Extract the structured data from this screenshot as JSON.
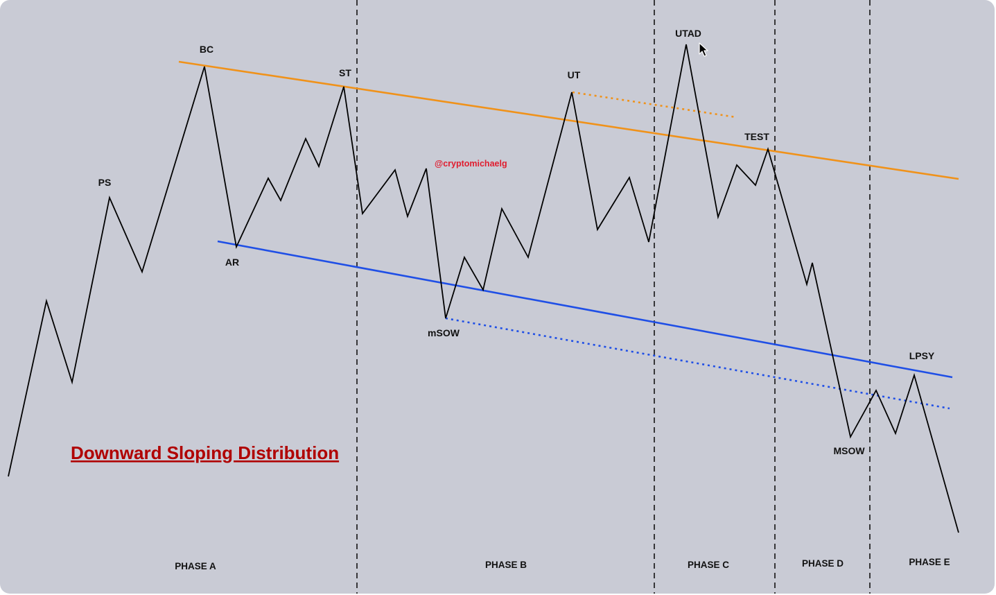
{
  "diagram": {
    "title": "Downward Sloping Distribution",
    "watermark": "@cryptomichaelg",
    "event_labels": {
      "ps": "PS",
      "bc": "BC",
      "ar": "AR",
      "st": "ST",
      "msow_minor": "mSOW",
      "ut": "UT",
      "utad": "UTAD",
      "test": "TEST",
      "msow": "MSOW",
      "lpsy": "LPSY"
    },
    "phases": {
      "a": "PHASE A",
      "b": "PHASE B",
      "c": "PHASE C",
      "d": "PHASE D",
      "e": "PHASE E"
    }
  },
  "colors": {
    "background": "#c9cbd5",
    "resistance_line": "#f0921a",
    "support_line": "#1f4fe6",
    "price_line": "#000000",
    "title": "#b00000",
    "watermark": "#e01c2e"
  }
}
